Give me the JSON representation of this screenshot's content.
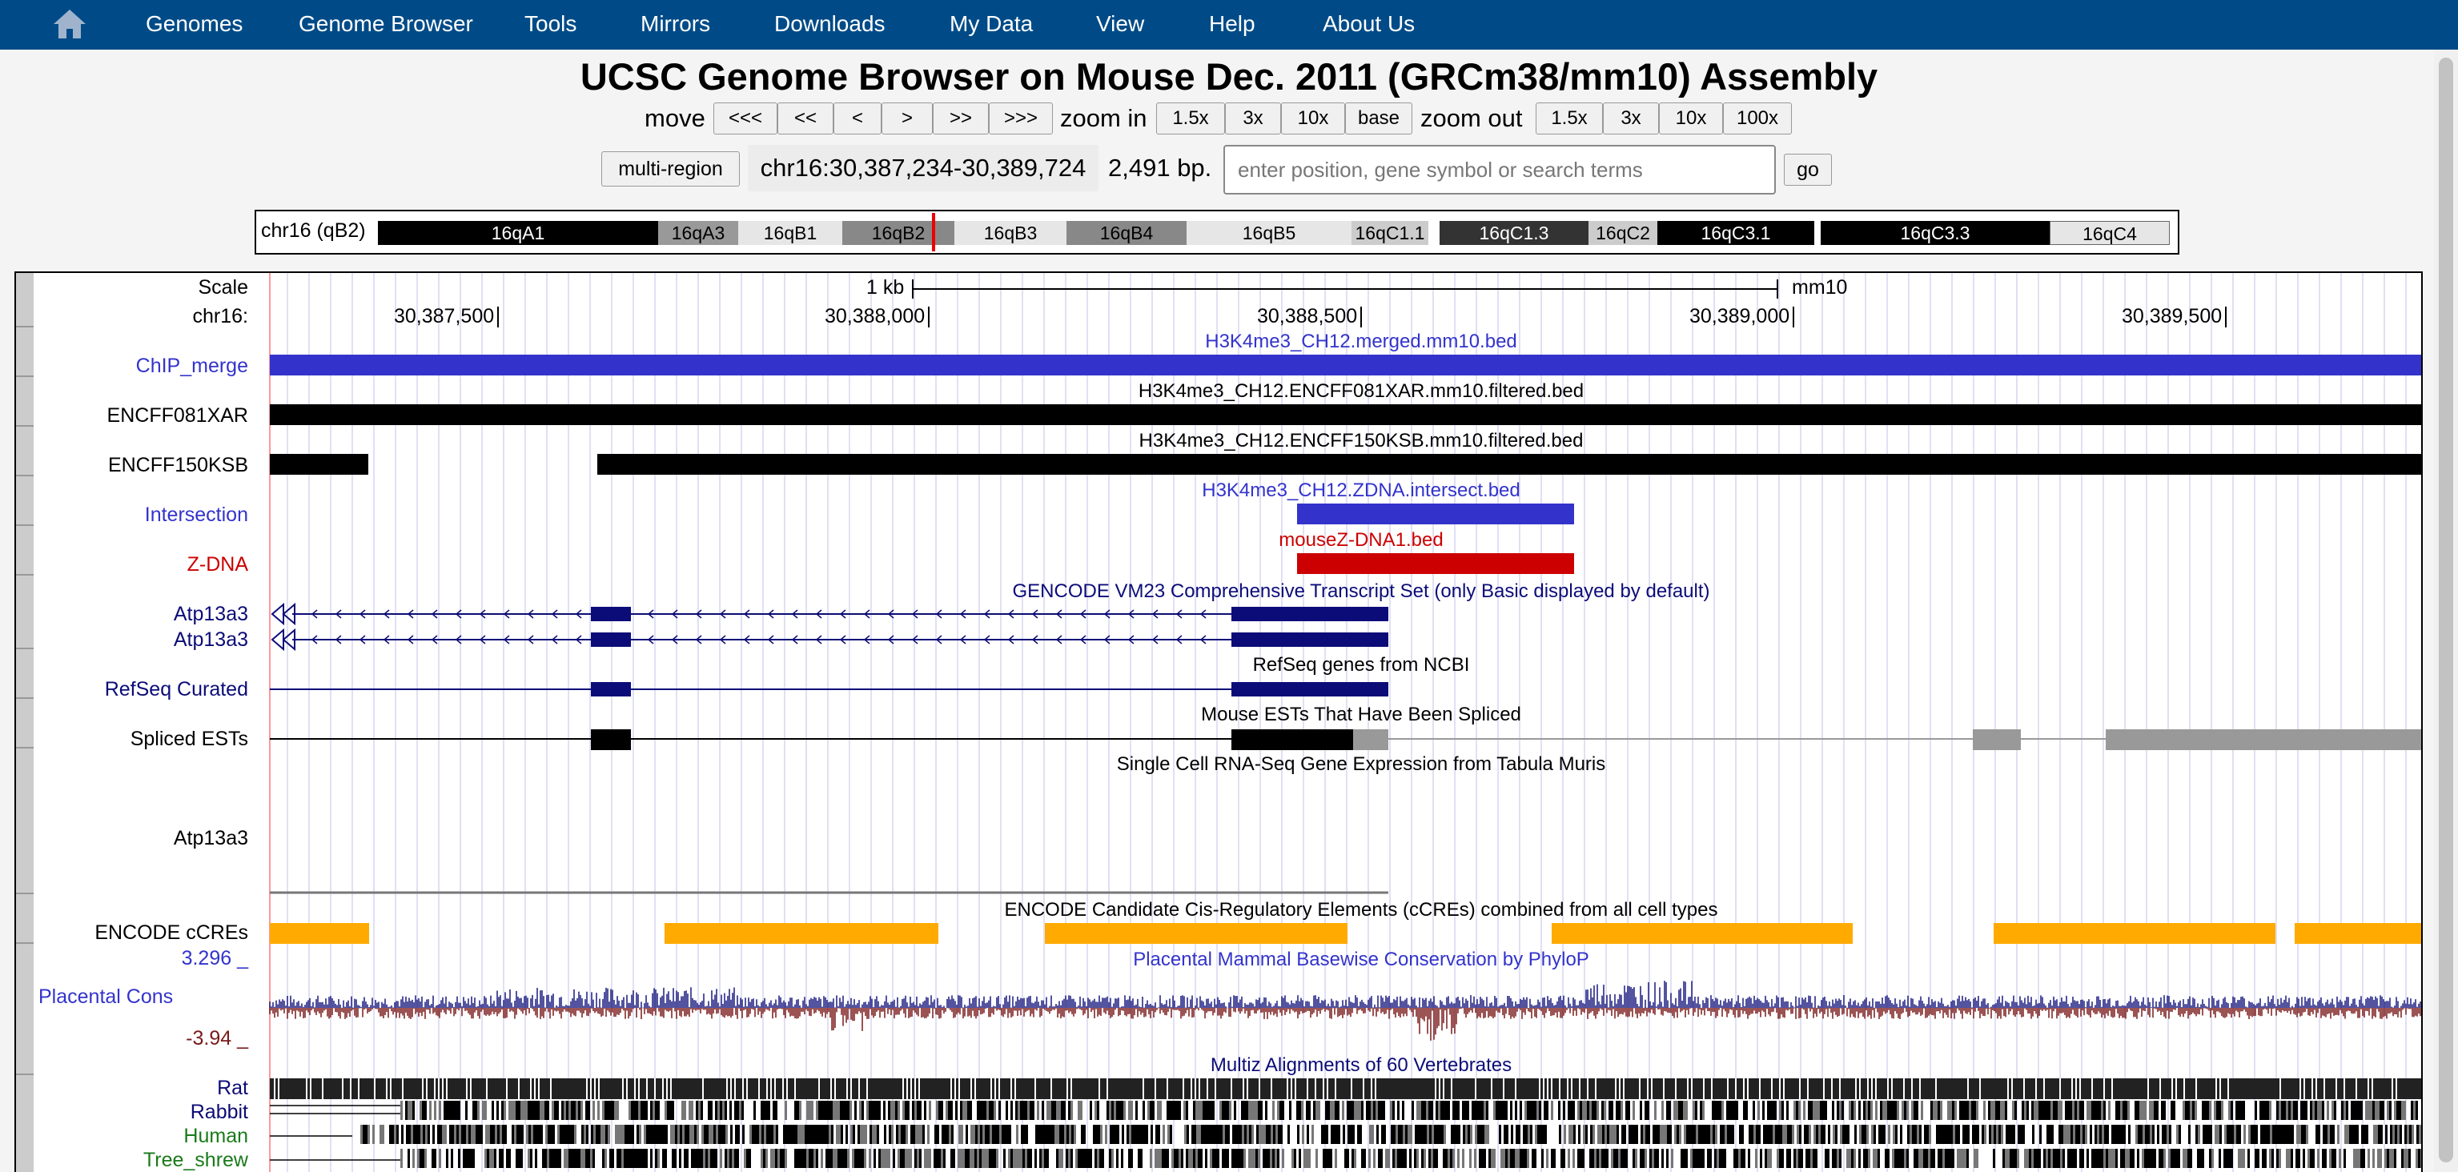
{
  "nav": {
    "items": [
      "Genomes",
      "Genome Browser",
      "Tools",
      "Mirrors",
      "Downloads",
      "My Data",
      "View",
      "Help",
      "About Us"
    ]
  },
  "title": "UCSC Genome Browser on Mouse Dec. 2011 (GRCm38/mm10) Assembly",
  "controls": {
    "move_label": "move",
    "move_buttons": [
      "<<<",
      "<<",
      "<",
      ">",
      ">>",
      ">>>"
    ],
    "zoom_in_label": "zoom in",
    "zoom_in_buttons": [
      "1.5x",
      "3x",
      "10x",
      "base"
    ],
    "zoom_out_label": "zoom out",
    "zoom_out_buttons": [
      "1.5x",
      "3x",
      "10x",
      "100x"
    ],
    "multi_region": "multi-region",
    "position": "chr16:30,387,234-30,389,724",
    "size": "2,491 bp.",
    "search_placeholder": "enter position, gene symbol or search terms",
    "go": "go"
  },
  "ideogram": {
    "chrom": "chr16 (qB2)",
    "bands": [
      "16qA1",
      "16qA3",
      "16qB1",
      "16qB2",
      "16qB3",
      "16qB4",
      "16qB5",
      "16qC1.1",
      "16qC1.3",
      "16qC2",
      "16qC3.1",
      "16qC3.3",
      "16qC4"
    ]
  },
  "scale": {
    "scale_label": "Scale",
    "chrom_label": "chr16:",
    "bar_label": "1 kb",
    "assembly": "mm10",
    "ticks": [
      "30,387,500",
      "30,388,000",
      "30,388,500",
      "30,389,000",
      "30,389,500"
    ]
  },
  "tracks": {
    "chip_merge": {
      "label": "ChIP_merge",
      "title": "H3K4me3_CH12.merged.mm10.bed"
    },
    "encff081xar": {
      "label": "ENCFF081XAR",
      "title": "H3K4me3_CH12.ENCFF081XAR.mm10.filtered.bed"
    },
    "encff150ksb": {
      "label": "ENCFF150KSB",
      "title": "H3K4me3_CH12.ENCFF150KSB.mm10.filtered.bed"
    },
    "intersection": {
      "label": "Intersection",
      "title": "H3K4me3_CH12.ZDNA.intersect.bed"
    },
    "zdna": {
      "label": "Z-DNA",
      "title": "mouseZ-DNA1.bed"
    },
    "gencode": {
      "title": "GENCODE VM23 Comprehensive Transcript Set (only Basic displayed by default)",
      "labels": [
        "Atp13a3",
        "Atp13a3"
      ]
    },
    "refseq": {
      "label": "RefSeq Curated",
      "title": "RefSeq genes from NCBI"
    },
    "ests": {
      "label": "Spliced ESTs",
      "title": "Mouse ESTs That Have Been Spliced"
    },
    "tabula": {
      "label": "Atp13a3",
      "title": "Single Cell RNA-Seq Gene Expression from Tabula Muris"
    },
    "ccre": {
      "label": "ENCODE cCREs",
      "title": "ENCODE Candidate Cis-Regulatory Elements (cCREs) combined from all cell types"
    },
    "cons": {
      "label": "Placental Cons",
      "max": "3.296 _",
      "min": "-3.94 _",
      "title": "Placental Mammal Basewise Conservation by PhyloP"
    },
    "multiz": {
      "title": "Multiz Alignments of 60 Vertebrates",
      "species": [
        "Rat",
        "Rabbit",
        "Human",
        "Tree_shrew"
      ]
    }
  },
  "colors": {
    "nav": "#004b87",
    "chip": "#3333cc",
    "intersection": "#3333cc",
    "zdna": "#cc0000",
    "gene": "#0c0c78",
    "ccre": "#ffaa00",
    "cons_pos": "#1a1a80",
    "cons_neg": "#7a1a1a"
  }
}
